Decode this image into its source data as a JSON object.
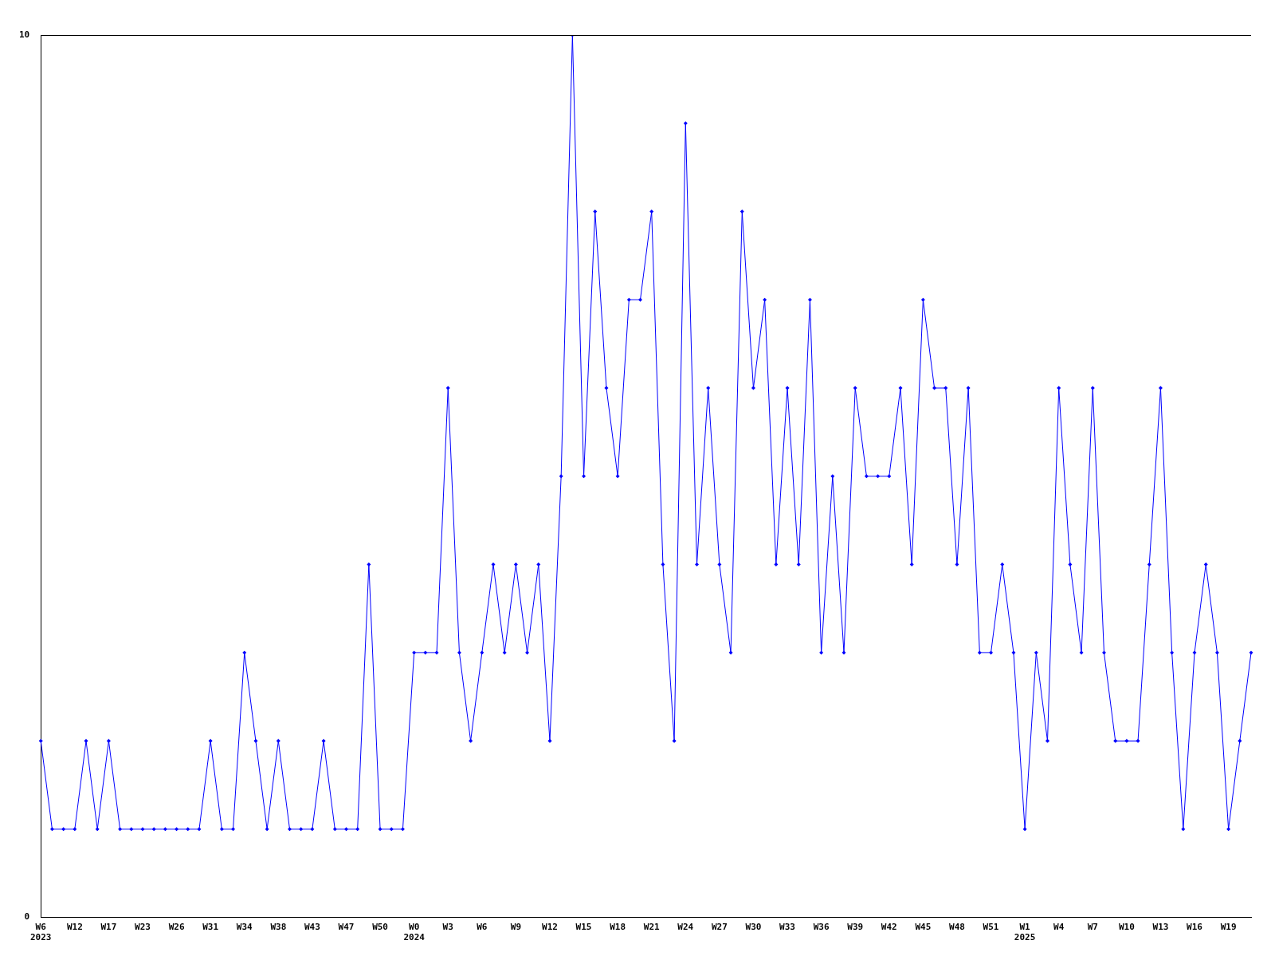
{
  "chart_data": {
    "type": "line",
    "categories": [
      "W6\n2023",
      null,
      null,
      "W12",
      null,
      null,
      "W17",
      null,
      null,
      "W23",
      null,
      null,
      "W26",
      null,
      null,
      "W31",
      null,
      null,
      "W34",
      null,
      null,
      "W38",
      null,
      null,
      "W43",
      null,
      null,
      "W47",
      null,
      null,
      "W50",
      null,
      null,
      "W0\n2024",
      null,
      null,
      "W3",
      null,
      null,
      "W6",
      null,
      null,
      "W9",
      null,
      null,
      "W12",
      null,
      null,
      "W15",
      null,
      null,
      "W18",
      null,
      null,
      "W21",
      null,
      null,
      "W24",
      null,
      null,
      "W27",
      null,
      null,
      "W30",
      null,
      null,
      "W33",
      null,
      null,
      "W36",
      null,
      null,
      "W39",
      null,
      null,
      "W42",
      null,
      null,
      "W45",
      null,
      null,
      "W48",
      null,
      null,
      "W51",
      null,
      null,
      "W1\n2025",
      null,
      null,
      "W4",
      null,
      null,
      "W7",
      null,
      null,
      "W10",
      null,
      null,
      "W13",
      null,
      null,
      "W16",
      null,
      null,
      "W19",
      null,
      null
    ],
    "series": [
      {
        "color": "#0000ff",
        "values": [
          2,
          1,
          1,
          1,
          2,
          1,
          2,
          1,
          1,
          1,
          1,
          1,
          1,
          1,
          1,
          2,
          1,
          1,
          3,
          2,
          1,
          2,
          1,
          1,
          1,
          2,
          1,
          1,
          1,
          4,
          1,
          1,
          1,
          3,
          3,
          3,
          6,
          3,
          2,
          3,
          4,
          3,
          4,
          3,
          4,
          2,
          5,
          10,
          5,
          8,
          6,
          5,
          7,
          7,
          8,
          4,
          2,
          9,
          4,
          6,
          4,
          3,
          8,
          6,
          7,
          4,
          6,
          4,
          7,
          3,
          5,
          3,
          6,
          5,
          5,
          5,
          6,
          4,
          7,
          6,
          6,
          4,
          6,
          3,
          3,
          4,
          3,
          1,
          3,
          2,
          6,
          4,
          3,
          6,
          3,
          2,
          2,
          2,
          4,
          6,
          3,
          1,
          3,
          4,
          3,
          1,
          2,
          3
        ]
      }
    ],
    "ylim": [
      0,
      10
    ],
    "yticks": [
      0,
      10
    ],
    "grid": false,
    "legend": false,
    "marker": "diamond",
    "line_style": "solid"
  }
}
